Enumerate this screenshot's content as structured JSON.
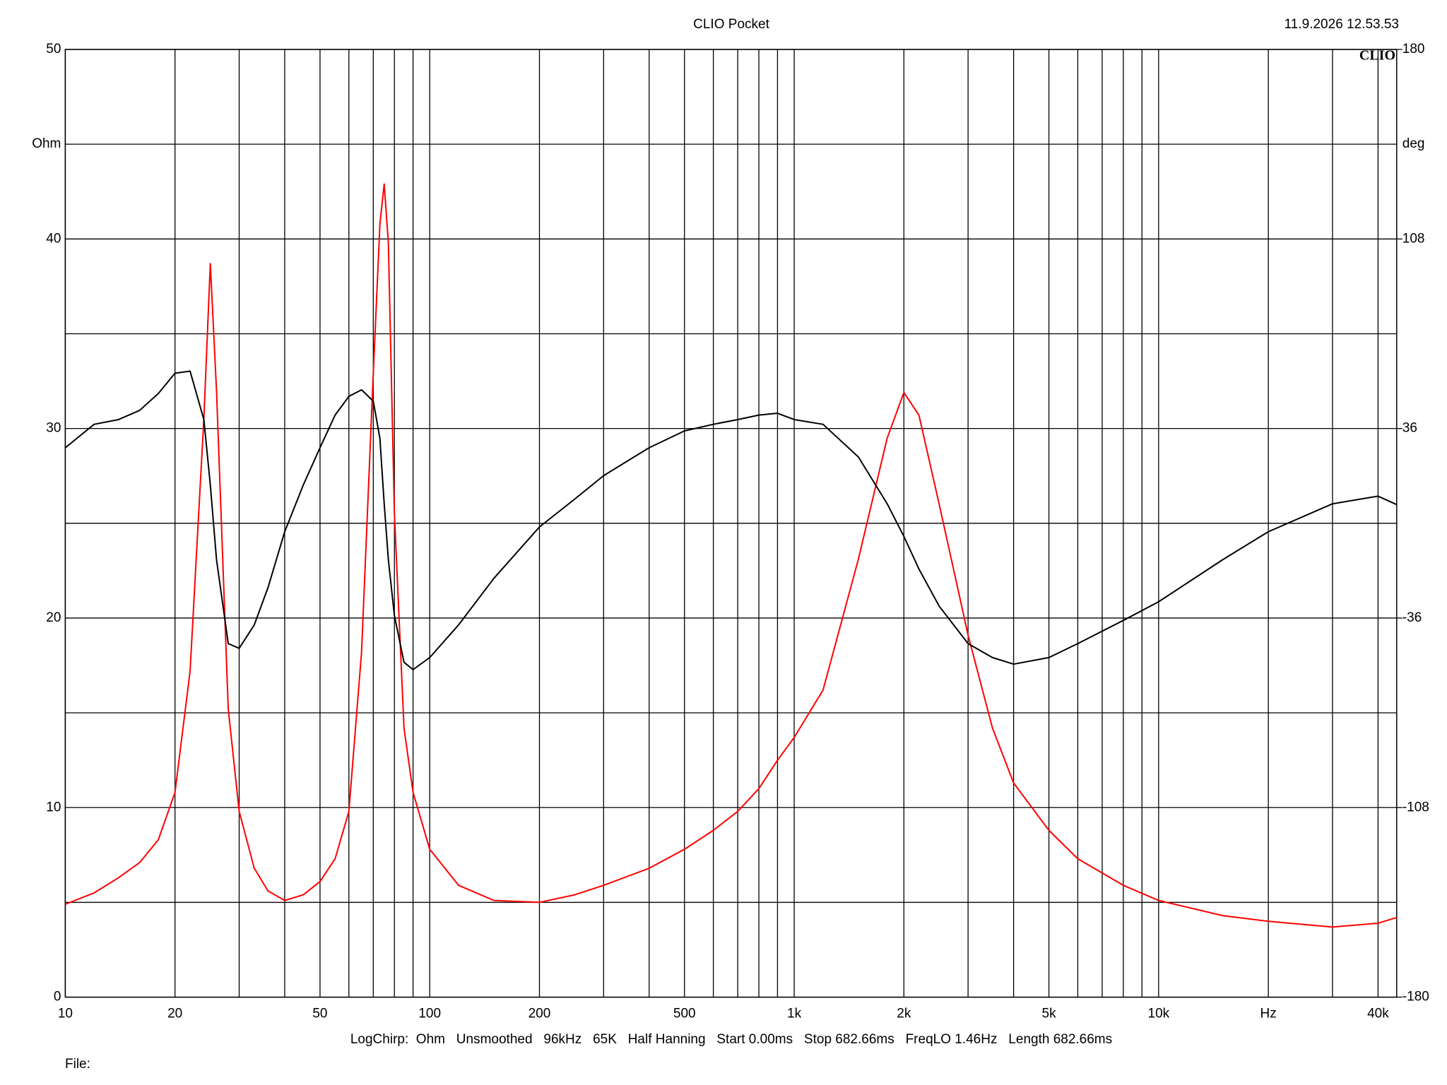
{
  "chart_data": {
    "type": "line",
    "title": "CLIO Pocket",
    "timestamp": "11.9.2026 12.53.53",
    "logo": "CLIO",
    "ylabel": "Ohm",
    "y2label": "deg",
    "footer": "LogChirp:  Ohm   Unsmoothed   96kHz   65K   Half Hanning   Start 0.00ms   Stop 682.66ms   FreqLO 1.46Hz   Length 682.66ms",
    "file_label": "File:",
    "xlog": true,
    "grid": true,
    "xlim": [
      10,
      45000
    ],
    "xticks": [
      10,
      20,
      50,
      100,
      200,
      500,
      {
        "value": 1000,
        "label": "1k"
      },
      {
        "value": 2000,
        "label": "2k"
      },
      {
        "value": 5000,
        "label": "5k"
      },
      {
        "value": 10000,
        "label": "10k"
      },
      {
        "value": 20000,
        "label": "Hz"
      },
      {
        "value": 40000,
        "label": "40k"
      }
    ],
    "xgrid": [
      30,
      40,
      60,
      70,
      80,
      90,
      300,
      400,
      600,
      700,
      800,
      900,
      3000,
      4000,
      6000,
      7000,
      8000,
      9000,
      30000
    ],
    "ylim": [
      0,
      50
    ],
    "yticks": [
      0,
      10,
      20,
      30,
      40,
      50
    ],
    "ygrid": [
      5,
      15,
      25,
      35,
      45
    ],
    "y2lim": [
      -180,
      180
    ],
    "y2ticks": [
      -180,
      -108,
      -36,
      36,
      108,
      180
    ],
    "x": [
      10,
      12,
      14,
      16,
      18,
      20,
      22,
      24,
      25,
      26,
      28,
      30,
      33,
      36,
      40,
      45,
      50,
      55,
      60,
      65,
      70,
      73,
      75,
      77,
      80,
      85,
      90,
      100,
      120,
      150,
      200,
      250,
      300,
      400,
      500,
      600,
      700,
      800,
      900,
      1000,
      1200,
      1500,
      1800,
      2000,
      2200,
      2500,
      3000,
      3500,
      4000,
      5000,
      6000,
      8000,
      10000,
      15000,
      20000,
      30000,
      40000,
      45000
    ],
    "series": [
      {
        "color": "#ff0000",
        "values": [
          4.9,
          5.5,
          6.3,
          7.1,
          8.3,
          10.8,
          17.2,
          30.5,
          38.7,
          32,
          15.2,
          9.8,
          6.8,
          5.6,
          5.1,
          5.4,
          6.1,
          7.3,
          9.8,
          18.2,
          32.9,
          40.8,
          42.9,
          39.8,
          25.5,
          14.2,
          10.8,
          7.8,
          5.9,
          5.1,
          5.0,
          5.4,
          5.9,
          6.8,
          7.8,
          8.8,
          9.8,
          11.0,
          12.5,
          13.7,
          16.2,
          23.1,
          29.5,
          31.9,
          30.7,
          26.0,
          19.1,
          14.2,
          11.3,
          8.8,
          7.3,
          5.9,
          5.1,
          4.3,
          4.0,
          3.7,
          3.9,
          4.2
        ]
      },
      {
        "color": "#000000",
        "axis": "y2",
        "values": [
          28.7,
          37.6,
          39.4,
          42.9,
          49.3,
          57.0,
          57.8,
          39.4,
          14.6,
          -13.8,
          -45.7,
          -47.5,
          -38.6,
          -24.4,
          -3.2,
          14.6,
          28.7,
          41.1,
          48.2,
          50.7,
          46.4,
          32.2,
          7.4,
          -13.8,
          -35.1,
          -52.8,
          -55.6,
          -51,
          -38.6,
          -20.9,
          -1.4,
          9.2,
          18.1,
          28.7,
          35.1,
          37.6,
          39.4,
          41.1,
          41.8,
          39.4,
          37.6,
          25.2,
          7.4,
          -5.0,
          -17.4,
          -31.5,
          -45.7,
          -51,
          -53.5,
          -51,
          -45.7,
          -36.9,
          -29.8,
          -13.8,
          -3.2,
          7.4,
          10.3,
          7.1
        ]
      }
    ]
  }
}
